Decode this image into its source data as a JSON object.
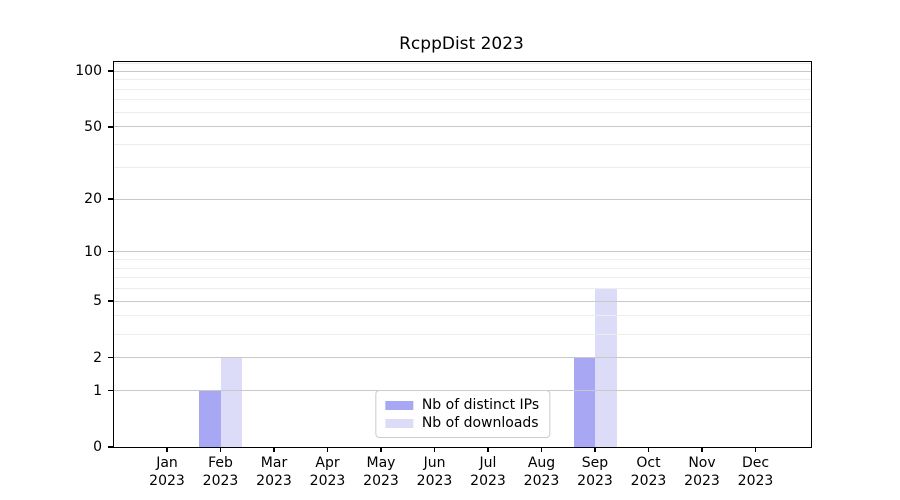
{
  "chart_data": {
    "type": "bar",
    "title": "RcppDist 2023",
    "categories": [
      "Jan",
      "Feb",
      "Mar",
      "Apr",
      "May",
      "Jun",
      "Jul",
      "Aug",
      "Sep",
      "Oct",
      "Nov",
      "Dec"
    ],
    "category_year": "2023",
    "series": [
      {
        "name": "Nb of distinct IPs",
        "color": "#a7a7f3",
        "values": [
          0,
          1,
          0,
          0,
          0,
          0,
          0,
          0,
          2,
          0,
          0,
          0
        ]
      },
      {
        "name": "Nb of downloads",
        "color": "#dcdcf9",
        "values": [
          0,
          2,
          0,
          0,
          0,
          0,
          0,
          0,
          6,
          0,
          0,
          0
        ]
      }
    ],
    "xlabel": "",
    "ylabel": "",
    "y_scale": "log1p",
    "y_axis": {
      "major_ticks": [
        0,
        1,
        2,
        5,
        10,
        20,
        50,
        100
      ],
      "minor_gridlines": [
        3,
        4,
        6,
        7,
        8,
        9,
        30,
        40,
        60,
        70,
        80,
        90,
        110
      ],
      "min": 0,
      "max": 112
    },
    "grid": true,
    "legend_position": "lower center",
    "legend_entries": [
      "Nb of distinct IPs",
      "Nb of downloads"
    ]
  },
  "colors": {
    "bar_distinct_ips": "#a7a7f3",
    "bar_downloads": "#dcdcf9",
    "major_grid": "#c9c9c9",
    "minor_grid": "#ededed",
    "spine": "#000000",
    "text": "#000000",
    "legend_border": "#cccccc"
  }
}
